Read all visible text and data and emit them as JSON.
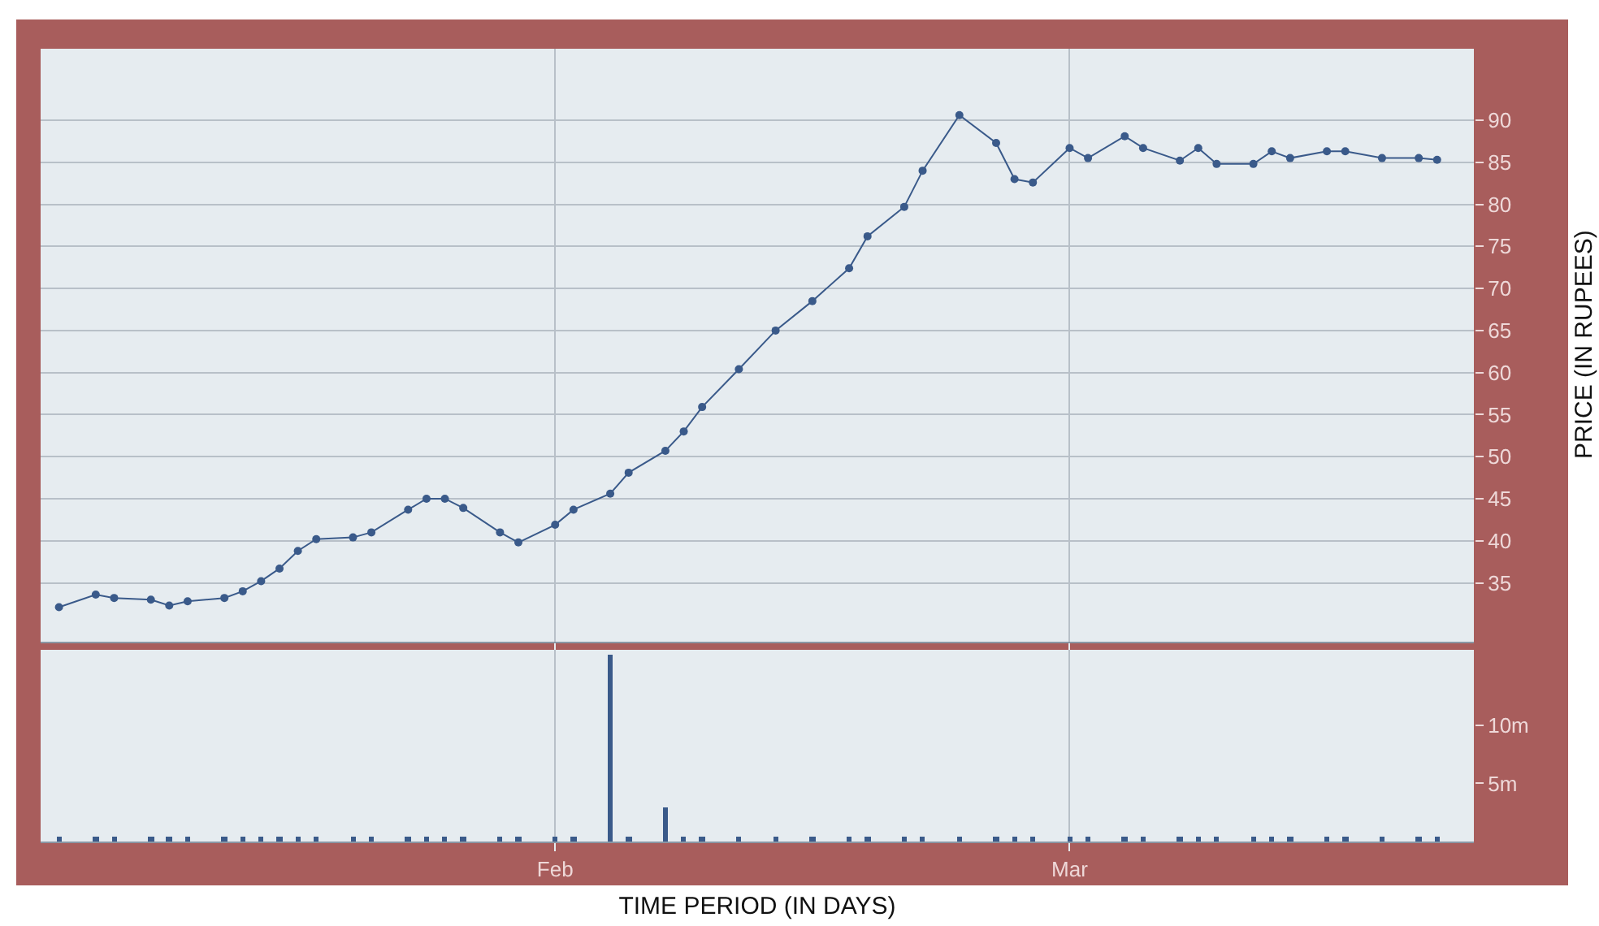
{
  "chart_data": [
    {
      "type": "line",
      "ylabel": "PRICE (IN RUPEES)",
      "x": [
        "--01-05",
        "--01-07",
        "--01-08",
        "--01-10",
        "--01-11",
        "--01-12",
        "--01-14",
        "--01-15",
        "--01-16",
        "--01-17",
        "--01-18",
        "--01-19",
        "--01-21",
        "--01-22",
        "--01-24",
        "--01-25",
        "--01-26",
        "--01-27",
        "--01-29",
        "--01-30",
        "--02-01",
        "--02-02",
        "--02-04",
        "--02-05",
        "--02-07",
        "--02-08",
        "--02-09",
        "--02-11",
        "--02-13",
        "--02-15",
        "--02-17",
        "--02-18",
        "--02-20",
        "--02-21",
        "--02-23",
        "--02-25",
        "--02-26",
        "--02-27",
        "--03-01",
        "--03-02",
        "--03-04",
        "--03-05",
        "--03-07",
        "--03-08",
        "--03-09",
        "--03-11",
        "--03-12",
        "--03-13",
        "--03-15",
        "--03-16",
        "--03-18",
        "--03-20",
        "--03-21"
      ],
      "series": [
        {
          "color": "#3a5a8a",
          "values": [
            32.1,
            33.6,
            33.2,
            33.0,
            32.3,
            32.8,
            33.2,
            34.0,
            35.2,
            36.7,
            38.8,
            40.2,
            40.4,
            41.0,
            43.7,
            45.0,
            45.0,
            43.9,
            41.0,
            39.8,
            41.9,
            43.7,
            45.6,
            48.1,
            50.7,
            53.0,
            55.9,
            60.4,
            65.0,
            68.5,
            72.4,
            76.2,
            79.7,
            84.0,
            90.6,
            87.3,
            83.0,
            82.6,
            86.7,
            85.5,
            88.1,
            86.7,
            85.2,
            86.7,
            84.8,
            84.8,
            86.3,
            85.5,
            86.3,
            86.3,
            85.5,
            85.5,
            85.3
          ]
        }
      ],
      "xlim": [
        "--01-04",
        "--03-23"
      ],
      "xticks": [
        {
          "value": "--02-01",
          "label": "Feb"
        },
        {
          "value": "--03-01",
          "label": "Mar"
        }
      ],
      "ylim": [
        28,
        98.5
      ],
      "yticks": [
        35,
        40,
        45,
        50,
        55,
        60,
        65,
        70,
        75,
        80,
        85,
        90
      ],
      "grid": true,
      "marker": "circle",
      "line_style": "solid",
      "tick_labels": "y"
    },
    {
      "type": "bar",
      "xlabel": "TIME PERIOD (IN DAYS)",
      "x": [
        "--01-05",
        "--01-07",
        "--01-08",
        "--01-10",
        "--01-11",
        "--01-12",
        "--01-14",
        "--01-15",
        "--01-16",
        "--01-17",
        "--01-18",
        "--01-19",
        "--01-21",
        "--01-22",
        "--01-24",
        "--01-25",
        "--01-26",
        "--01-27",
        "--01-29",
        "--01-30",
        "--02-01",
        "--02-02",
        "--02-04",
        "--02-05",
        "--02-07",
        "--02-08",
        "--02-09",
        "--02-11",
        "--02-13",
        "--02-15",
        "--02-17",
        "--02-18",
        "--02-20",
        "--02-21",
        "--02-23",
        "--02-25",
        "--02-26",
        "--02-27",
        "--03-01",
        "--03-02",
        "--03-04",
        "--03-05",
        "--03-07",
        "--03-08",
        "--03-09",
        "--03-11",
        "--03-12",
        "--03-13",
        "--03-15",
        "--03-16",
        "--03-18",
        "--03-20",
        "--03-21"
      ],
      "series": [
        {
          "color": "#3a5a8a",
          "values": [
            0.4,
            0.4,
            0.4,
            0.4,
            0.4,
            0.4,
            0.4,
            0.4,
            0.4,
            0.4,
            0.4,
            0.4,
            0.4,
            0.4,
            0.4,
            0.4,
            0.4,
            0.4,
            0.4,
            0.4,
            0.4,
            0.4,
            16.1,
            0.4,
            3.0,
            0.4,
            0.4,
            0.4,
            0.4,
            0.4,
            0.4,
            0.4,
            0.4,
            0.4,
            0.4,
            0.4,
            0.4,
            0.4,
            0.4,
            0.4,
            0.4,
            0.4,
            0.4,
            0.4,
            0.4,
            0.4,
            0.4,
            0.4,
            0.4,
            0.4,
            0.4,
            0.4,
            0.4
          ]
        }
      ],
      "xlim": [
        "--01-04",
        "--03-23"
      ],
      "xticks": [
        {
          "value": "--02-01",
          "label": "Feb"
        },
        {
          "value": "--03-01",
          "label": "Mar"
        }
      ],
      "ylim": [
        0,
        16.5
      ],
      "yticks": [
        {
          "value": 5,
          "label": "5m"
        },
        {
          "value": 10,
          "label": "10m"
        }
      ],
      "grid": "x"
    }
  ]
}
